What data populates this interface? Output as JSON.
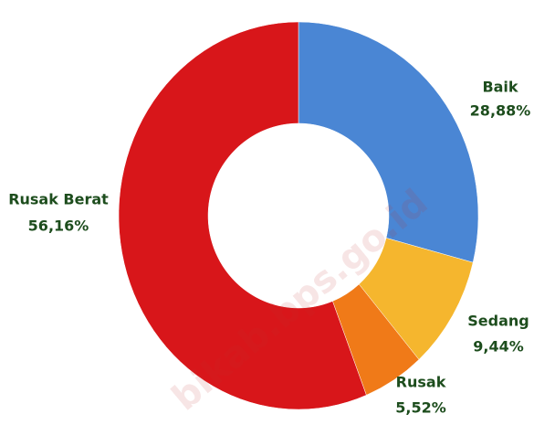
{
  "chart_data": {
    "type": "donut",
    "categories": [
      "Baik",
      "Sedang",
      "Rusak",
      "Rusak Berat"
    ],
    "values": [
      28.88,
      9.44,
      5.52,
      56.16
    ],
    "value_labels": [
      "28,88%",
      "9,44%",
      "5,52%",
      "56,16%"
    ],
    "colors": [
      "#4a86d4",
      "#f5b62e",
      "#f07a18",
      "#d8161a"
    ],
    "watermark": "bikab.bps.go.id"
  }
}
